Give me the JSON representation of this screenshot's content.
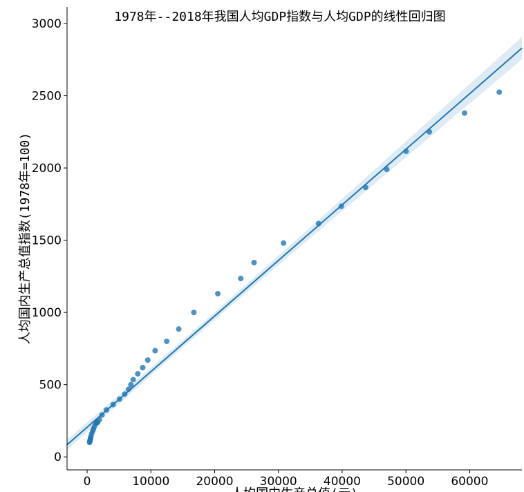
{
  "chart_data": {
    "type": "scatter",
    "title": "1978年--2018年我国人均GDP指数与人均GDP的线性回归图",
    "xlabel": "人均国内生产总值(元)",
    "ylabel": "人均国内生产总值指数(1978年=100)",
    "color": "#1f77b4",
    "regression": true,
    "x": [
      385,
      423,
      468,
      497,
      533,
      592,
      705,
      868,
      984,
      1129,
      1378,
      1536,
      1663,
      1912,
      2334,
      3027,
      4081,
      5091,
      5898,
      6481,
      6860,
      7229,
      7942,
      8717,
      9506,
      10666,
      12487,
      14368,
      16738,
      20494,
      24100,
      26180,
      30808,
      36302,
      39874,
      43684,
      47005,
      50028,
      53680,
      59201,
      64644
    ],
    "y": [
      100,
      108,
      116,
      122,
      130,
      140,
      160,
      178,
      192,
      210,
      230,
      236,
      240,
      258,
      290,
      325,
      362,
      400,
      435,
      468,
      500,
      535,
      575,
      618,
      670,
      735,
      800,
      885,
      1000,
      1130,
      1235,
      1345,
      1480,
      1615,
      1735,
      1865,
      1990,
      2115,
      2250,
      2380,
      2525
    ],
    "xlim": [
      -3150,
      68200
    ],
    "ylim": [
      -90,
      3115
    ],
    "xticks": [
      0,
      10000,
      20000,
      30000,
      40000,
      50000,
      60000
    ],
    "yticks": [
      0,
      500,
      1000,
      1500,
      2000,
      2500,
      3000
    ]
  }
}
